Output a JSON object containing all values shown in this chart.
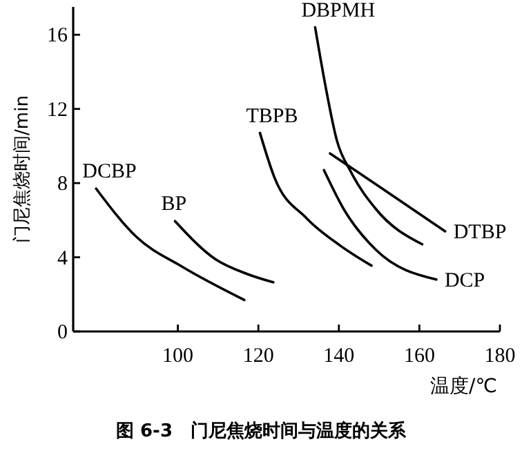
{
  "chart_data": {
    "type": "line",
    "title": "图 6-3　门尼焦烧时间与温度的关系",
    "xlabel": "温度/℃",
    "ylabel": "门尼焦烧时间/min",
    "xlim": [
      74,
      180
    ],
    "xticks": [
      100,
      120,
      140,
      160,
      180
    ],
    "ylim": [
      0,
      17.5
    ],
    "yticks": [
      0,
      4,
      8,
      12,
      16
    ],
    "grid": false,
    "legend": false,
    "marker": "none",
    "line_style": "solid",
    "series": [
      {
        "name": "DCBP",
        "color": "#000000",
        "x": [
          79.7,
          89.7,
          101,
          116.5
        ],
        "values": [
          7.7,
          5.1,
          3.5,
          1.7
        ]
      },
      {
        "name": "BP",
        "color": "#000000",
        "x": [
          99.3,
          109.3,
          117.2,
          123.7
        ],
        "values": [
          5.95,
          3.9,
          3.1,
          2.65
        ]
      },
      {
        "name": "TBPB",
        "color": "#000000",
        "x": [
          120.4,
          124,
          132,
          140.2,
          148.1
        ],
        "values": [
          10.7,
          8.3,
          6.1,
          4.65,
          3.55
        ]
      },
      {
        "name": "DBPMH",
        "color": "#000000",
        "x": [
          134.1,
          136.7,
          139.5,
          143,
          149.2,
          160.7
        ],
        "values": [
          16.4,
          13.2,
          10.3,
          8.6,
          6.6,
          4.7
        ]
      },
      {
        "name": "DTBP",
        "color": "#000000",
        "x": [
          137.8,
          151.5,
          166.4
        ],
        "values": [
          9.6,
          7.6,
          5.4
        ]
      },
      {
        "name": "DCP",
        "color": "#000000",
        "x": [
          136.3,
          141.2,
          149.2,
          164.2
        ],
        "values": [
          8.7,
          6.6,
          4.4,
          2.8
        ]
      }
    ]
  }
}
